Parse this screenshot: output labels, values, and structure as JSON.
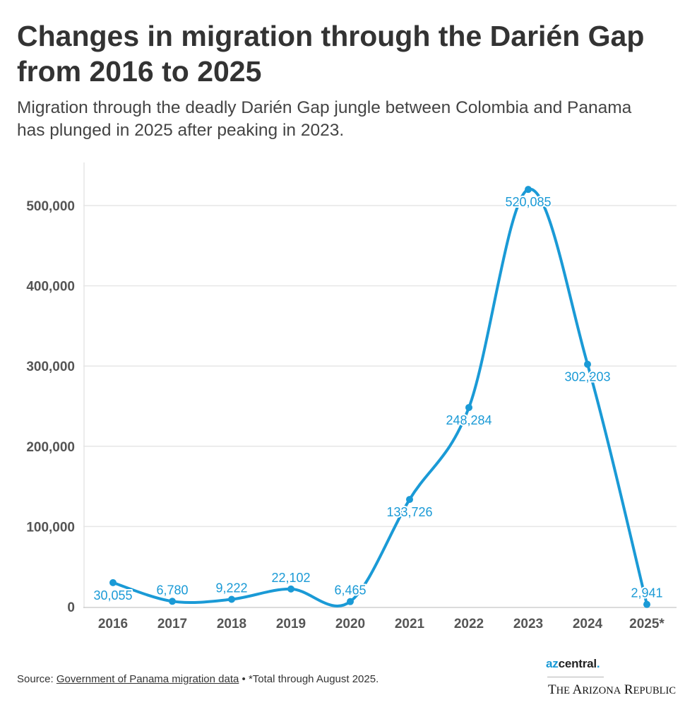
{
  "chart_data": {
    "type": "line",
    "title": "Changes in migration through the Darién Gap from 2016 to 2025",
    "subtitle": "Migration through the deadly Darién Gap jungle between Colombia and Panama has plunged in 2025 after peaking in 2023.",
    "categories": [
      "2016",
      "2017",
      "2018",
      "2019",
      "2020",
      "2021",
      "2022",
      "2023",
      "2024",
      "2025*"
    ],
    "series": [
      {
        "name": "Migrants",
        "values": [
          30055,
          6780,
          9222,
          22102,
          6465,
          133726,
          248284,
          520085,
          302203,
          2941
        ],
        "labels": [
          "30,055",
          "6,780",
          "9,222",
          "22,102",
          "6,465",
          "133,726",
          "248,284",
          "520,085",
          "302,203",
          "2,941"
        ]
      }
    ],
    "ylim": [
      0,
      560000
    ],
    "yticks": [
      0,
      100000,
      200000,
      300000,
      400000,
      500000
    ],
    "ytick_labels": [
      "0",
      "100,000",
      "200,000",
      "300,000",
      "400,000",
      "500,000"
    ],
    "xlabel": "",
    "ylabel": "",
    "grid": true,
    "colors": {
      "line": "#1a9ad6",
      "grid": "#e6e6e6",
      "axis_text": "#555555"
    }
  },
  "footer": {
    "source_prefix": "Source: ",
    "source_link": "Government of Panama migration data",
    "source_suffix": " • *Total through August 2025."
  },
  "branding": {
    "az": "az",
    "central": "central",
    "dot": ".",
    "republic_the": "T",
    "republic_he": "HE",
    "republic_a": "A",
    "republic_rizona": "RIZONA",
    "republic_r": "R",
    "republic_epublic": "EPUBLIC"
  }
}
